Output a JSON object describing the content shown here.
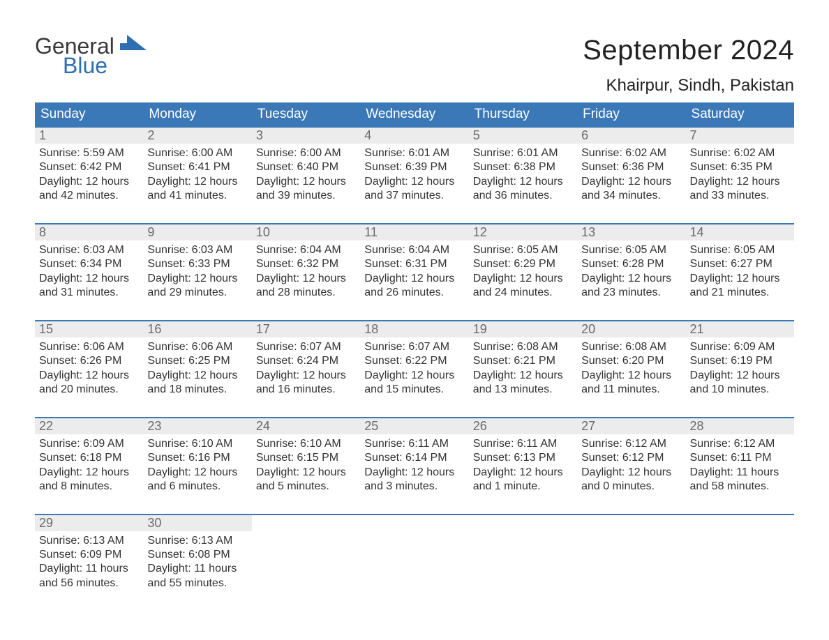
{
  "brand": {
    "word1": "General",
    "word2": "Blue",
    "logo_fill": "#2f6eb0",
    "word1_color": "#3a3a3a",
    "word2_color": "#2f6eb0"
  },
  "title": {
    "month": "September 2024",
    "location": "Khairpur, Sindh, Pakistan",
    "title_color": "#222222",
    "title_fontsize": 40,
    "location_fontsize": 24
  },
  "calendar": {
    "header_bg": "#3b78b8",
    "header_text_color": "#ffffff",
    "daynum_bg": "#ececec",
    "daynum_color": "#6a6a6a",
    "row_border_color": "#3b78b8",
    "body_text_color": "#333333",
    "day_names": [
      "Sunday",
      "Monday",
      "Tuesday",
      "Wednesday",
      "Thursday",
      "Friday",
      "Saturday"
    ],
    "weeks": [
      [
        {
          "n": "1",
          "sunrise": "Sunrise: 5:59 AM",
          "sunset": "Sunset: 6:42 PM",
          "d1": "Daylight: 12 hours",
          "d2": "and 42 minutes."
        },
        {
          "n": "2",
          "sunrise": "Sunrise: 6:00 AM",
          "sunset": "Sunset: 6:41 PM",
          "d1": "Daylight: 12 hours",
          "d2": "and 41 minutes."
        },
        {
          "n": "3",
          "sunrise": "Sunrise: 6:00 AM",
          "sunset": "Sunset: 6:40 PM",
          "d1": "Daylight: 12 hours",
          "d2": "and 39 minutes."
        },
        {
          "n": "4",
          "sunrise": "Sunrise: 6:01 AM",
          "sunset": "Sunset: 6:39 PM",
          "d1": "Daylight: 12 hours",
          "d2": "and 37 minutes."
        },
        {
          "n": "5",
          "sunrise": "Sunrise: 6:01 AM",
          "sunset": "Sunset: 6:38 PM",
          "d1": "Daylight: 12 hours",
          "d2": "and 36 minutes."
        },
        {
          "n": "6",
          "sunrise": "Sunrise: 6:02 AM",
          "sunset": "Sunset: 6:36 PM",
          "d1": "Daylight: 12 hours",
          "d2": "and 34 minutes."
        },
        {
          "n": "7",
          "sunrise": "Sunrise: 6:02 AM",
          "sunset": "Sunset: 6:35 PM",
          "d1": "Daylight: 12 hours",
          "d2": "and 33 minutes."
        }
      ],
      [
        {
          "n": "8",
          "sunrise": "Sunrise: 6:03 AM",
          "sunset": "Sunset: 6:34 PM",
          "d1": "Daylight: 12 hours",
          "d2": "and 31 minutes."
        },
        {
          "n": "9",
          "sunrise": "Sunrise: 6:03 AM",
          "sunset": "Sunset: 6:33 PM",
          "d1": "Daylight: 12 hours",
          "d2": "and 29 minutes."
        },
        {
          "n": "10",
          "sunrise": "Sunrise: 6:04 AM",
          "sunset": "Sunset: 6:32 PM",
          "d1": "Daylight: 12 hours",
          "d2": "and 28 minutes."
        },
        {
          "n": "11",
          "sunrise": "Sunrise: 6:04 AM",
          "sunset": "Sunset: 6:31 PM",
          "d1": "Daylight: 12 hours",
          "d2": "and 26 minutes."
        },
        {
          "n": "12",
          "sunrise": "Sunrise: 6:05 AM",
          "sunset": "Sunset: 6:29 PM",
          "d1": "Daylight: 12 hours",
          "d2": "and 24 minutes."
        },
        {
          "n": "13",
          "sunrise": "Sunrise: 6:05 AM",
          "sunset": "Sunset: 6:28 PM",
          "d1": "Daylight: 12 hours",
          "d2": "and 23 minutes."
        },
        {
          "n": "14",
          "sunrise": "Sunrise: 6:05 AM",
          "sunset": "Sunset: 6:27 PM",
          "d1": "Daylight: 12 hours",
          "d2": "and 21 minutes."
        }
      ],
      [
        {
          "n": "15",
          "sunrise": "Sunrise: 6:06 AM",
          "sunset": "Sunset: 6:26 PM",
          "d1": "Daylight: 12 hours",
          "d2": "and 20 minutes."
        },
        {
          "n": "16",
          "sunrise": "Sunrise: 6:06 AM",
          "sunset": "Sunset: 6:25 PM",
          "d1": "Daylight: 12 hours",
          "d2": "and 18 minutes."
        },
        {
          "n": "17",
          "sunrise": "Sunrise: 6:07 AM",
          "sunset": "Sunset: 6:24 PM",
          "d1": "Daylight: 12 hours",
          "d2": "and 16 minutes."
        },
        {
          "n": "18",
          "sunrise": "Sunrise: 6:07 AM",
          "sunset": "Sunset: 6:22 PM",
          "d1": "Daylight: 12 hours",
          "d2": "and 15 minutes."
        },
        {
          "n": "19",
          "sunrise": "Sunrise: 6:08 AM",
          "sunset": "Sunset: 6:21 PM",
          "d1": "Daylight: 12 hours",
          "d2": "and 13 minutes."
        },
        {
          "n": "20",
          "sunrise": "Sunrise: 6:08 AM",
          "sunset": "Sunset: 6:20 PM",
          "d1": "Daylight: 12 hours",
          "d2": "and 11 minutes."
        },
        {
          "n": "21",
          "sunrise": "Sunrise: 6:09 AM",
          "sunset": "Sunset: 6:19 PM",
          "d1": "Daylight: 12 hours",
          "d2": "and 10 minutes."
        }
      ],
      [
        {
          "n": "22",
          "sunrise": "Sunrise: 6:09 AM",
          "sunset": "Sunset: 6:18 PM",
          "d1": "Daylight: 12 hours",
          "d2": "and 8 minutes."
        },
        {
          "n": "23",
          "sunrise": "Sunrise: 6:10 AM",
          "sunset": "Sunset: 6:16 PM",
          "d1": "Daylight: 12 hours",
          "d2": "and 6 minutes."
        },
        {
          "n": "24",
          "sunrise": "Sunrise: 6:10 AM",
          "sunset": "Sunset: 6:15 PM",
          "d1": "Daylight: 12 hours",
          "d2": "and 5 minutes."
        },
        {
          "n": "25",
          "sunrise": "Sunrise: 6:11 AM",
          "sunset": "Sunset: 6:14 PM",
          "d1": "Daylight: 12 hours",
          "d2": "and 3 minutes."
        },
        {
          "n": "26",
          "sunrise": "Sunrise: 6:11 AM",
          "sunset": "Sunset: 6:13 PM",
          "d1": "Daylight: 12 hours",
          "d2": "and 1 minute."
        },
        {
          "n": "27",
          "sunrise": "Sunrise: 6:12 AM",
          "sunset": "Sunset: 6:12 PM",
          "d1": "Daylight: 12 hours",
          "d2": "and 0 minutes."
        },
        {
          "n": "28",
          "sunrise": "Sunrise: 6:12 AM",
          "sunset": "Sunset: 6:11 PM",
          "d1": "Daylight: 11 hours",
          "d2": "and 58 minutes."
        }
      ],
      [
        {
          "n": "29",
          "sunrise": "Sunrise: 6:13 AM",
          "sunset": "Sunset: 6:09 PM",
          "d1": "Daylight: 11 hours",
          "d2": "and 56 minutes."
        },
        {
          "n": "30",
          "sunrise": "Sunrise: 6:13 AM",
          "sunset": "Sunset: 6:08 PM",
          "d1": "Daylight: 11 hours",
          "d2": "and 55 minutes."
        },
        {
          "empty": true
        },
        {
          "empty": true
        },
        {
          "empty": true
        },
        {
          "empty": true
        },
        {
          "empty": true
        }
      ]
    ]
  }
}
